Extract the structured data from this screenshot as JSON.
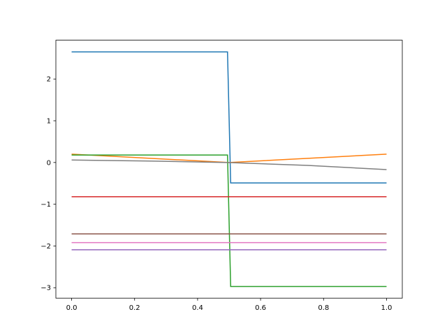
{
  "chart_data": {
    "type": "line",
    "x": [
      0,
      0.25,
      0.495,
      0.5,
      0.505,
      0.75,
      1
    ],
    "series": [
      {
        "color": "#1f77b4",
        "values": [
          2.65,
          2.65,
          2.65,
          1.08,
          -0.49,
          -0.49,
          -0.49
        ]
      },
      {
        "color": "#ff7f0e",
        "values": [
          0.2,
          0.1,
          0.002,
          0,
          0.002,
          0.1,
          0.2
        ]
      },
      {
        "color": "#2ca02c",
        "values": [
          0.18,
          0.18,
          0.18,
          -1.4,
          -2.97,
          -2.97,
          -2.97
        ]
      },
      {
        "color": "#d62728",
        "values": [
          -0.82,
          -0.82,
          -0.82,
          -0.82,
          -0.82,
          -0.82,
          -0.82
        ]
      },
      {
        "color": "#9467bd",
        "values": [
          -2.09,
          -2.09,
          -2.09,
          -2.09,
          -2.09,
          -2.09,
          -2.09
        ]
      },
      {
        "color": "#8c564b",
        "values": [
          -1.71,
          -1.71,
          -1.71,
          -1.71,
          -1.71,
          -1.71,
          -1.71
        ]
      },
      {
        "color": "#e377c2",
        "values": [
          -1.92,
          -1.92,
          -1.92,
          -1.92,
          -1.92,
          -1.92,
          -1.92
        ]
      },
      {
        "color": "#7f7f7f",
        "values": [
          0.06,
          0.035,
          0,
          0,
          -0.003,
          -0.07,
          -0.17
        ]
      }
    ],
    "xlim": [
      -0.05,
      1.05
    ],
    "ylim": [
      -3.25,
      2.93
    ],
    "xticks": [
      {
        "value": 0,
        "label": "0.0"
      },
      0.2,
      0.4,
      0.6,
      0.8,
      {
        "value": 1,
        "label": "1.0"
      }
    ],
    "yticks": [
      {
        "value": -3,
        "label": "−3"
      },
      {
        "value": -2,
        "label": "−2"
      },
      {
        "value": -1,
        "label": "−1"
      },
      0,
      1,
      2
    ]
  }
}
